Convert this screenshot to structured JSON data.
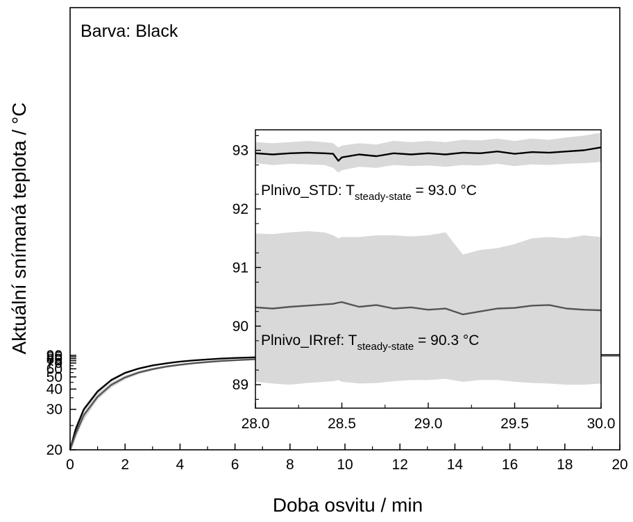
{
  "chart_data": [
    {
      "type": "line",
      "annotation": "Barva: Black",
      "xlabel": "Doba osvitu / min",
      "ylabel": "Aktuální snímaná teplota / °C",
      "xlim": [
        0,
        20
      ],
      "ylim": [
        20,
        93
      ],
      "y_scale": "reciprocal",
      "grid": false,
      "x_ticks": [
        0,
        2,
        4,
        6,
        8,
        10,
        12,
        14,
        16,
        18,
        20
      ],
      "x_tick_labels": [
        "0",
        "2",
        "4",
        "6",
        "8",
        "10",
        "12",
        "14",
        "16",
        "18",
        "20"
      ],
      "y_ticks": [
        20,
        30,
        40,
        50,
        60,
        70,
        75,
        80,
        85,
        90
      ],
      "y_tick_labels": [
        "20",
        "30",
        "40",
        "50",
        "60",
        "70",
        "75",
        "80",
        "85",
        "90"
      ],
      "x": [
        0,
        0.2,
        0.5,
        1,
        1.5,
        2,
        2.5,
        3,
        3.5,
        4,
        4.5,
        5,
        5.5,
        6,
        7,
        8,
        9,
        10,
        11,
        12,
        13,
        14,
        15,
        16,
        17,
        18,
        19,
        20
      ],
      "series": [
        {
          "color": "#000000",
          "values": [
            20,
            24,
            30,
            38.5,
            47,
            54.5,
            60.5,
            65.5,
            69.5,
            73,
            75.8,
            78.2,
            80.2,
            81.9,
            84.6,
            86.4,
            87.7,
            88.7,
            89.4,
            90.0,
            90.4,
            90.7,
            90.9,
            91.0,
            91.1,
            91.15,
            91.2,
            91.2
          ],
          "band": [
            [
              19.5,
              23,
              29,
              37.5,
              45.5,
              53,
              59,
              64,
              68,
              71.6,
              74.5,
              77,
              79,
              80.8,
              83.6,
              85.5,
              86.9,
              87.9,
              88.6,
              89.2,
              89.6,
              90.0,
              90.2,
              90.3,
              90.4,
              90.5,
              90.5,
              90.5
            ],
            [
              20.5,
              25,
              31,
              39.5,
              48.5,
              56,
              62,
              67,
              71,
              74.4,
              77.1,
              79.4,
              81.4,
              83,
              85.6,
              87.3,
              88.5,
              89.5,
              90.2,
              90.7,
              91.1,
              91.4,
              91.6,
              91.7,
              91.8,
              91.8,
              91.9,
              91.9
            ]
          ]
        },
        {
          "color": "#555555",
          "values": [
            20,
            23,
            28,
            35.5,
            43,
            49.5,
            55,
            59.5,
            63.5,
            66.8,
            69.7,
            72.2,
            74.4,
            76.3,
            79.4,
            81.7,
            83.4,
            84.7,
            85.7,
            86.5,
            87.1,
            87.6,
            88.0,
            88.3,
            88.5,
            88.7,
            88.8,
            88.9
          ],
          "band": [
            [
              19.5,
              22,
              26.5,
              34,
              41,
              47.5,
              53,
              57.5,
              61.5,
              64.8,
              67.7,
              70.2,
              72.4,
              74.3,
              77.4,
              79.7,
              81.4,
              82.7,
              83.7,
              84.5,
              85.1,
              85.6,
              86,
              86.3,
              86.5,
              86.7,
              86.8,
              86.9
            ],
            [
              20.5,
              24.5,
              30,
              37.5,
              45,
              51.5,
              57,
              61.5,
              65.5,
              68.8,
              71.7,
              74.2,
              76.4,
              78.3,
              81.4,
              83.7,
              85.4,
              86.7,
              87.7,
              88.5,
              89.1,
              89.6,
              90,
              90.3,
              90.5,
              90.7,
              90.8,
              90.9
            ]
          ]
        }
      ]
    },
    {
      "type": "line",
      "inset": true,
      "xlim": [
        28.0,
        30.0
      ],
      "ylim": [
        88.6,
        93.35
      ],
      "grid": false,
      "x_ticks": [
        28.0,
        28.5,
        29.0,
        29.5,
        30.0
      ],
      "x_tick_labels": [
        "28.0",
        "28.5",
        "29.0",
        "29.5",
        "30.0"
      ],
      "y_ticks": [
        89,
        90,
        91,
        92,
        93
      ],
      "y_tick_labels": [
        "89",
        "90",
        "91",
        "92",
        "93"
      ],
      "annotations": [
        {
          "prefix": "Plnivo_STD: T",
          "subscript": "steady-state",
          "suffix": " = 93.0 °C"
        },
        {
          "prefix": "Plnivo_IRref: T",
          "subscript": "steady-state",
          "suffix": " = 90.3 °C"
        }
      ],
      "x": [
        28.0,
        28.1,
        28.2,
        28.3,
        28.4,
        28.45,
        28.48,
        28.5,
        28.6,
        28.7,
        28.8,
        28.9,
        29.0,
        29.1,
        29.2,
        29.3,
        29.4,
        29.5,
        29.6,
        29.7,
        29.8,
        29.9,
        30.0
      ],
      "series": [
        {
          "color": "#000000",
          "values": [
            92.95,
            92.93,
            92.95,
            92.96,
            92.95,
            92.94,
            92.82,
            92.88,
            92.93,
            92.9,
            92.95,
            92.93,
            92.95,
            92.93,
            92.96,
            92.95,
            92.98,
            92.94,
            92.97,
            92.96,
            92.98,
            93.0,
            93.05
          ],
          "band": [
            [
              92.78,
              92.75,
              92.77,
              92.76,
              92.75,
              92.7,
              92.62,
              92.66,
              92.72,
              92.7,
              92.75,
              92.73,
              92.74,
              92.72,
              92.75,
              92.74,
              92.77,
              92.73,
              92.76,
              92.75,
              92.77,
              92.78,
              92.8
            ],
            [
              93.14,
              93.12,
              93.14,
              93.16,
              93.14,
              93.12,
              93.05,
              93.08,
              93.12,
              93.1,
              93.16,
              93.14,
              93.16,
              93.14,
              93.18,
              93.17,
              93.2,
              93.16,
              93.2,
              93.18,
              93.22,
              93.25,
              93.3
            ]
          ]
        },
        {
          "color": "#555555",
          "values": [
            90.32,
            90.3,
            90.33,
            90.35,
            90.37,
            90.38,
            90.4,
            90.41,
            90.33,
            90.36,
            90.3,
            90.32,
            90.28,
            90.3,
            90.2,
            90.25,
            90.3,
            90.31,
            90.35,
            90.36,
            90.3,
            90.28,
            90.27
          ],
          "band": [
            [
              89.05,
              89.02,
              89.0,
              89.03,
              89.05,
              89.06,
              89.08,
              89.05,
              89.02,
              89.03,
              89.06,
              89.08,
              89.08,
              89.1,
              89.05,
              89.08,
              89.08,
              89.05,
              89.03,
              89.02,
              89.0,
              89.0,
              89.02
            ],
            [
              91.58,
              91.57,
              91.6,
              91.62,
              91.6,
              91.55,
              91.5,
              91.52,
              91.52,
              91.55,
              91.55,
              91.53,
              91.55,
              91.6,
              91.22,
              91.3,
              91.33,
              91.4,
              91.5,
              91.52,
              91.5,
              91.55,
              91.52
            ]
          ]
        }
      ]
    }
  ]
}
